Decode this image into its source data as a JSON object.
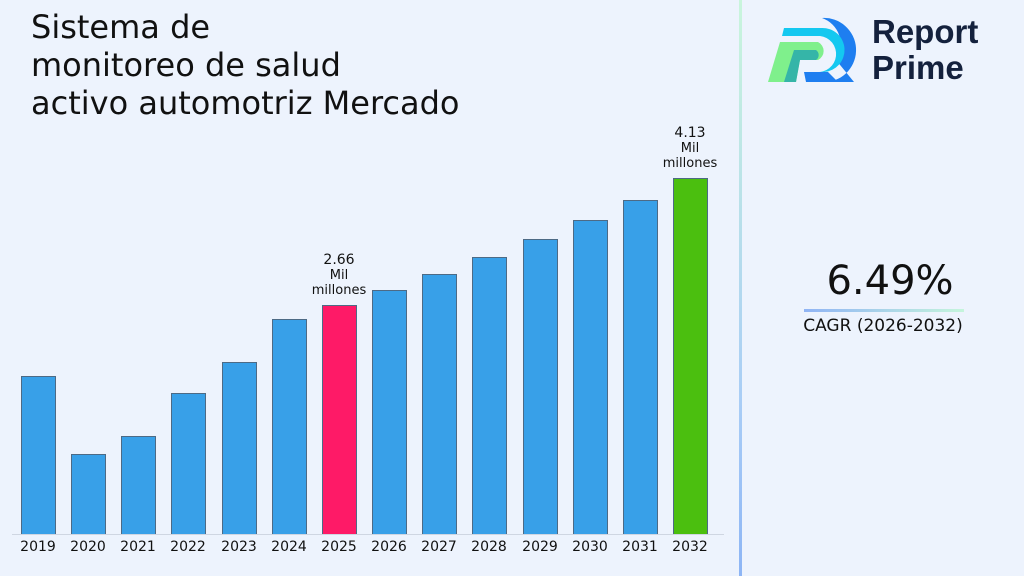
{
  "title": {
    "lines": [
      "Sistema de",
      "monitoreo de salud",
      "activo automotriz Mercado"
    ]
  },
  "brand": {
    "name_line1": "Report",
    "name_line2": "Prime",
    "logo_icon": "report-prime-r-logo"
  },
  "cagr": {
    "value": "6.49%",
    "label": "CAGR (2026-2032)"
  },
  "colors": {
    "bar_default": "#38a0e8",
    "bar_highlight_current": "#fe1a67",
    "bar_highlight_final": "#4bbf0f",
    "background": "#edf3fd",
    "brand_text": "#14213d"
  },
  "annotations": [
    {
      "year": "2025",
      "value": "2.66",
      "unit": "Mil",
      "unit2": "millones"
    },
    {
      "year": "2032",
      "value": "4.13",
      "unit": "Mil",
      "unit2": "millones"
    }
  ],
  "chart_data": {
    "type": "bar",
    "title": "Sistema de monitoreo de salud activo automotriz Mercado",
    "xlabel": "",
    "ylabel": "",
    "unit": "Mil millones",
    "categories": [
      "2019",
      "2020",
      "2021",
      "2022",
      "2023",
      "2024",
      "2025",
      "2026",
      "2027",
      "2028",
      "2029",
      "2030",
      "2031",
      "2032"
    ],
    "values": [
      1.83,
      0.93,
      1.14,
      1.64,
      1.99,
      2.5,
      2.66,
      2.83,
      3.02,
      3.21,
      3.42,
      3.64,
      3.88,
      4.13
    ],
    "highlighted": {
      "2025": "#fe1a67",
      "2032": "#4bbf0f"
    },
    "data_labels": {
      "2025": "2.66 Mil millones",
      "2032": "4.13 Mil millones"
    },
    "ylim": [
      0,
      4.2
    ],
    "grid": false,
    "legend": "none",
    "cagr": "6.49%",
    "cagr_period": "2026-2032"
  }
}
